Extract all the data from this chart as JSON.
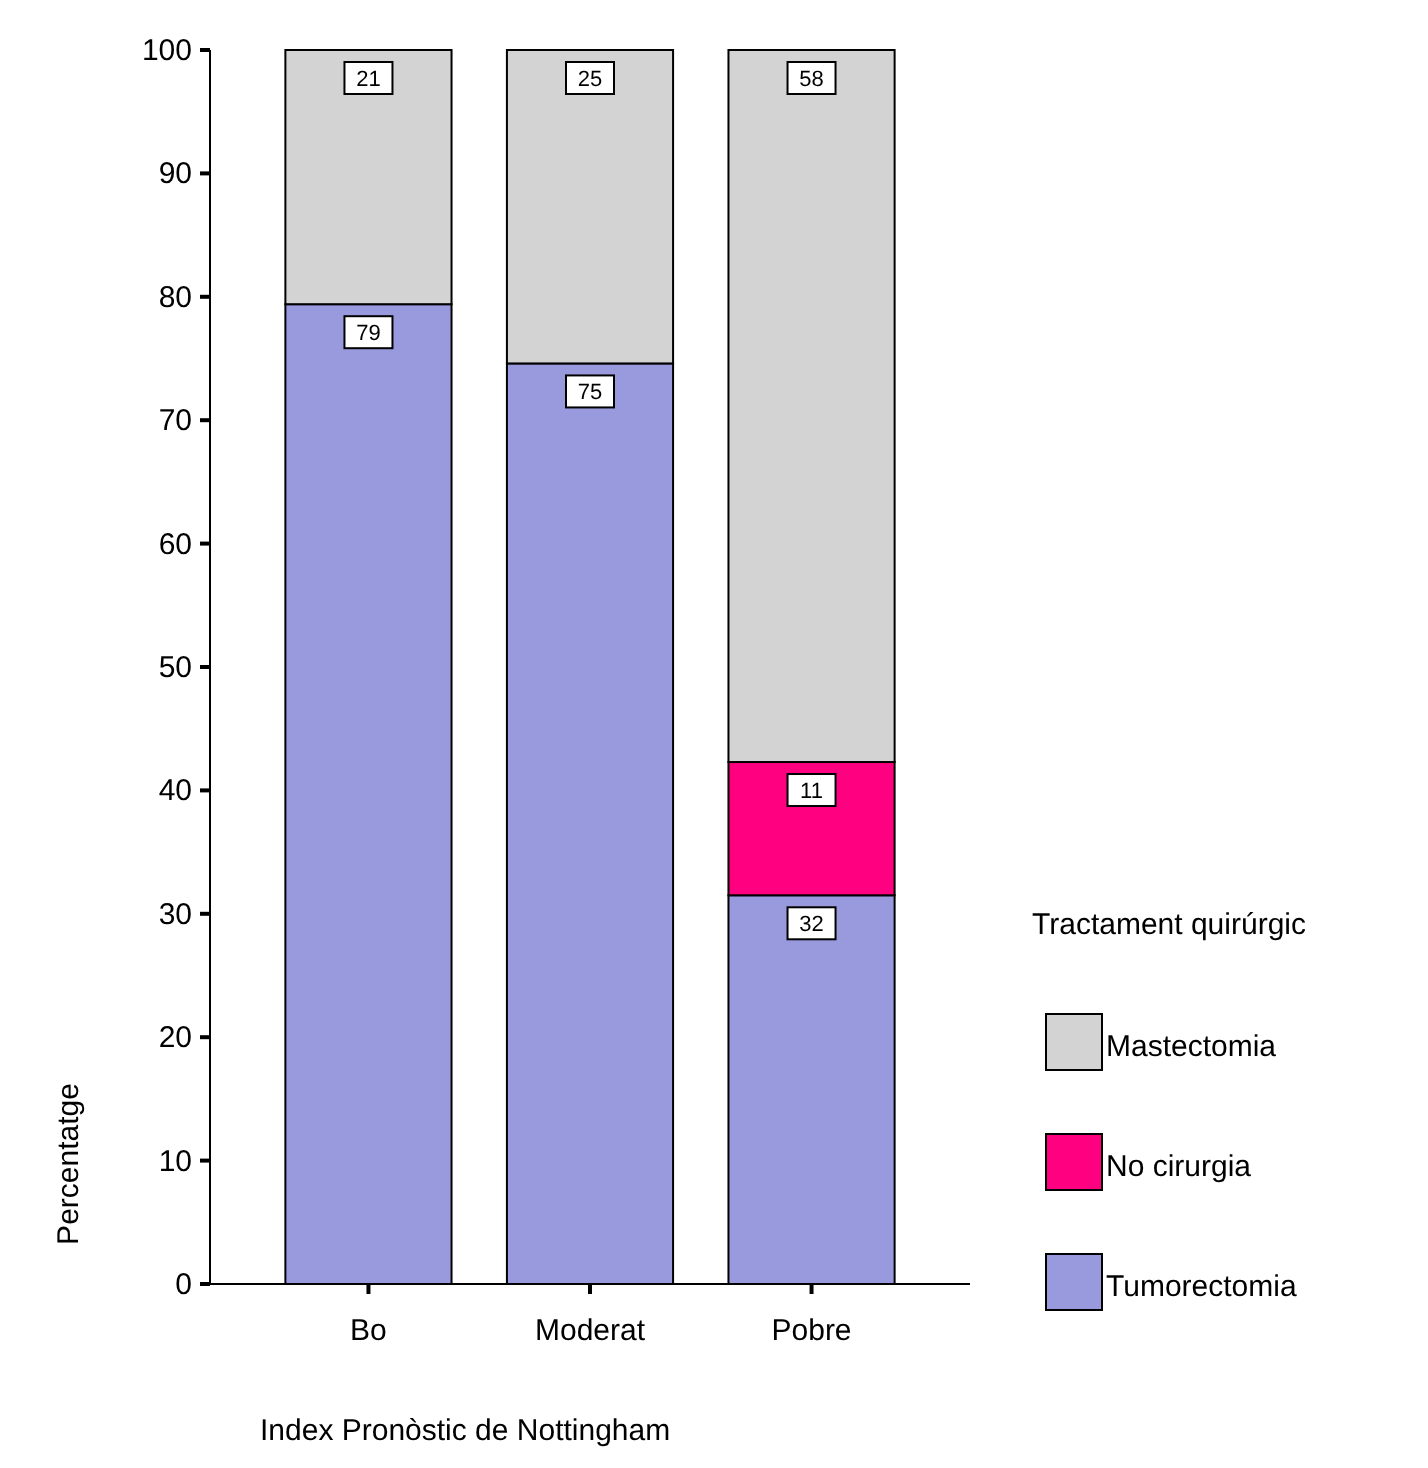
{
  "chart_data": {
    "type": "bar",
    "stacked": true,
    "xlabel": "Index Pronòstic de Nottingham",
    "ylabel": "Percentatge",
    "legend_title": "Tractament quirúrgic",
    "legend": "right",
    "categories": [
      "Bo",
      "Moderat",
      "Pobre"
    ],
    "ylim": [
      0,
      100
    ],
    "yticks": [
      0,
      10,
      20,
      30,
      40,
      50,
      60,
      70,
      80,
      90,
      100
    ],
    "series": [
      {
        "name": "Tumorectomia",
        "color": "#9999dd",
        "values": [
          79.4,
          74.6,
          31.5
        ],
        "value_labels": [
          "79",
          "75",
          "32"
        ]
      },
      {
        "name": "No cirurgia",
        "color": "#ff0080",
        "values": [
          0,
          0,
          10.8
        ],
        "value_labels": [
          null,
          null,
          "11"
        ]
      },
      {
        "name": "Mastectomia",
        "color": "#d3d3d3",
        "values": [
          20.6,
          25.4,
          57.7
        ],
        "value_labels": [
          "21",
          "25",
          "58"
        ]
      }
    ]
  }
}
